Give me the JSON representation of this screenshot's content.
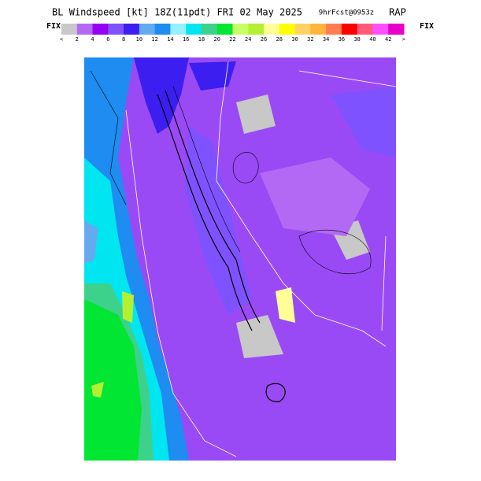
{
  "header": {
    "title": "BL Windspeed [kt] 18Z(11pdt) FRI 02 May 2025",
    "forecast": "9hrFcst@0953z",
    "model": "RAP"
  },
  "colorbar": {
    "fix_left": "FIX",
    "fix_right": "FIX",
    "colors": [
      "#c8c8c8",
      "#b469f5",
      "#9600f0",
      "#7f52ff",
      "#3c1ef0",
      "#64aaf0",
      "#1e8cf0",
      "#96f0ff",
      "#00e6f0",
      "#3cd28c",
      "#00e632",
      "#c8ff64",
      "#b4f032",
      "#ffff96",
      "#ffff00",
      "#ffd264",
      "#ffb43c",
      "#ff7d50",
      "#ff0000",
      "#ff5a78",
      "#ff50ff",
      "#e600c8"
    ],
    "labels": [
      "<",
      "2",
      "4",
      "6",
      "8",
      "10",
      "12",
      "14",
      "16",
      "18",
      "20",
      "22",
      "24",
      "26",
      "28",
      "30",
      "32",
      "34",
      "36",
      "38",
      "40",
      "42",
      ">"
    ]
  }
}
